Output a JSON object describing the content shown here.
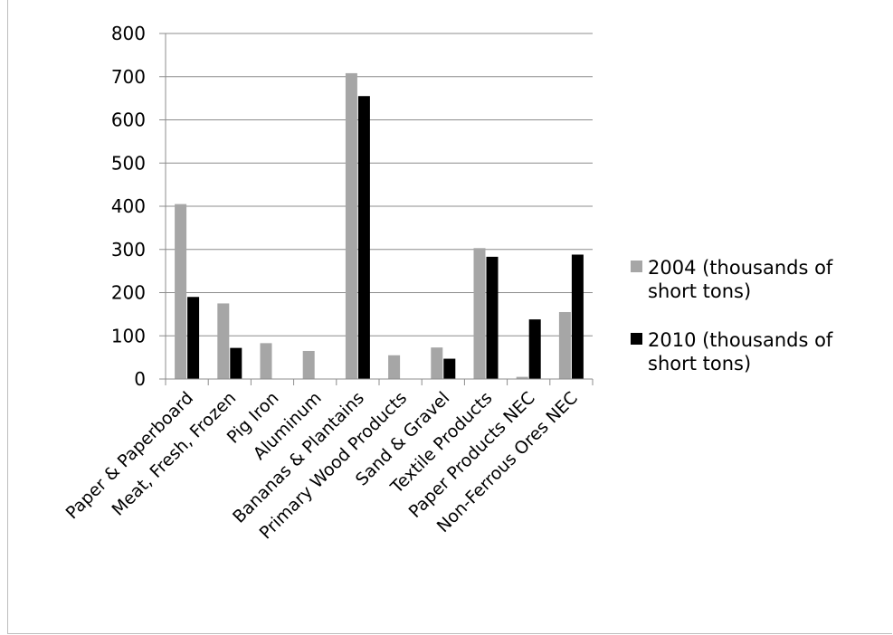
{
  "chart_data": {
    "type": "bar",
    "categories": [
      "Paper & Paperboard",
      "Meat, Fresh, Frozen",
      "Pig Iron",
      "Aluminum",
      "Bananas & Plantains",
      "Primary Wood Products",
      "Sand & Gravel",
      "Textile Products",
      "Paper Products NEC",
      "Non-Ferrous Ores NEC"
    ],
    "series": [
      {
        "name": "2004 (thousands of short tons)",
        "color": "#a6a6a6",
        "values": [
          405,
          175,
          83,
          65,
          708,
          55,
          73,
          303,
          5,
          155
        ]
      },
      {
        "name": "2010 (thousands of short tons)",
        "color": "#000000",
        "values": [
          190,
          72,
          0,
          0,
          655,
          0,
          47,
          283,
          138,
          288
        ]
      }
    ],
    "ylim": [
      0,
      800
    ],
    "yticks": [
      0,
      100,
      200,
      300,
      400,
      500,
      600,
      700,
      800
    ],
    "grid": true,
    "legend_position": "right",
    "legend_lines": [
      [
        "2004 (thousands of",
        "short tons)"
      ],
      [
        "2010 (thousands of",
        "short tons)"
      ]
    ]
  }
}
